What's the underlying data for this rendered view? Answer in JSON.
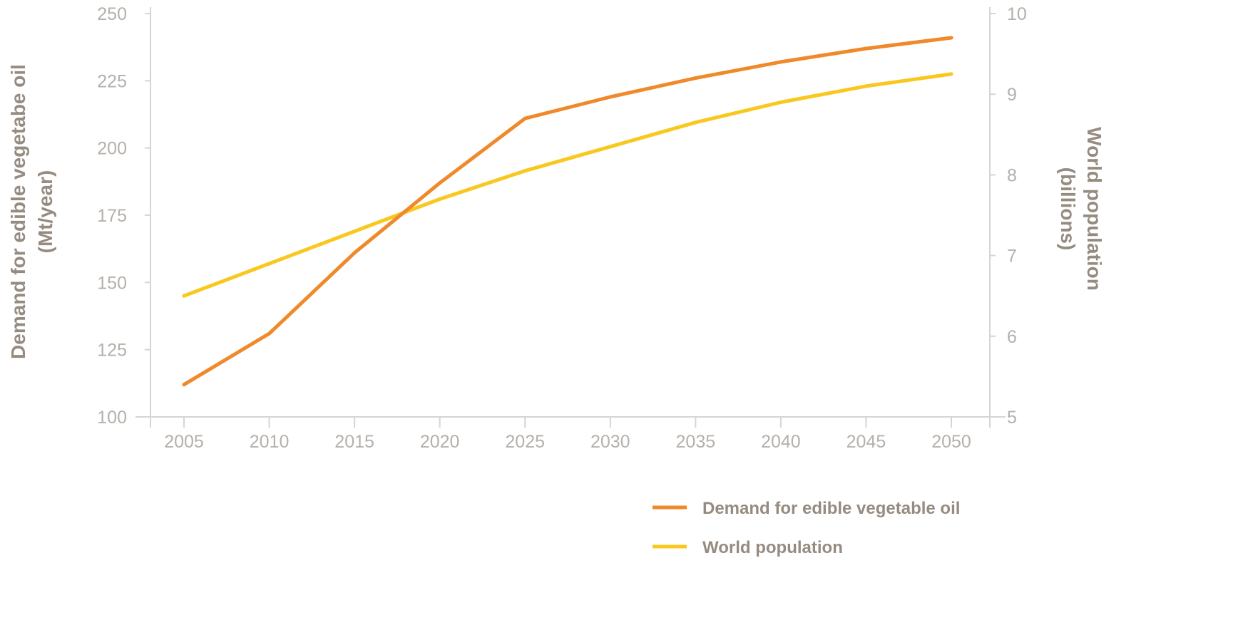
{
  "chart_data": {
    "type": "line",
    "x": [
      2005,
      2010,
      2015,
      2020,
      2025,
      2030,
      2035,
      2040,
      2045,
      2050
    ],
    "xticks": [
      "2005",
      "2010",
      "2015",
      "2020",
      "2025",
      "2030",
      "2035",
      "2040",
      "2045",
      "2050"
    ],
    "y_left": {
      "label_line1": "Demand for edible vegetabe oil",
      "label_line2": "(Mt/year)",
      "range": [
        100,
        250
      ],
      "ticks": [
        "100",
        "125",
        "150",
        "175",
        "200",
        "225",
        "250"
      ]
    },
    "y_right": {
      "label_line1": "World population",
      "label_line2": "(billions)",
      "range": [
        5,
        10
      ],
      "ticks": [
        "5",
        "6",
        "7",
        "8",
        "9",
        "10"
      ]
    },
    "series": [
      {
        "name": "Demand for edible vegetable oil",
        "axis": "left",
        "color": "#f0892a",
        "values": [
          112,
          131,
          161,
          187,
          211,
          219,
          226,
          232,
          237,
          241
        ]
      },
      {
        "name": "World population",
        "axis": "right",
        "color": "#f9c81e",
        "values": [
          6.5,
          6.9,
          7.3,
          7.7,
          8.05,
          8.35,
          8.65,
          8.9,
          9.1,
          9.25
        ]
      }
    ],
    "grid": false,
    "legend_position": "bottom-right"
  }
}
